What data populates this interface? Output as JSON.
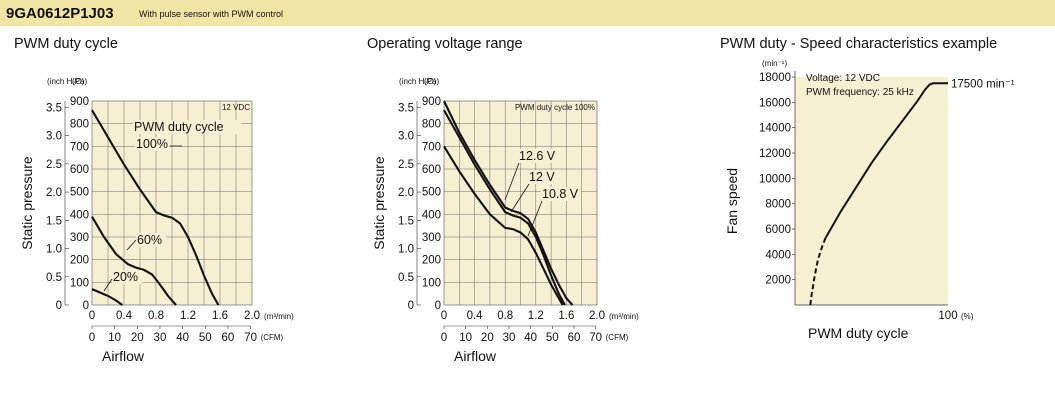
{
  "header": {
    "model": "9GA0612P1J03",
    "subtitle": "With pulse sensor with PWM control",
    "band_color": "#f1e5a6"
  },
  "plot_background": "#f7efd2",
  "chart_data": [
    {
      "type": "line",
      "title": "PWM duty cycle",
      "ylabel": "Static pressure",
      "xlabel": "Airflow",
      "y_unit_left": "(inch H₂O)",
      "y_unit_right": "(Pa)",
      "x_unit_top": "(m³/min)",
      "x_unit_bottom": "(CFM)",
      "corner_note": "12 VDC",
      "annotation": "PWM duty cycle",
      "xlim": [
        0,
        2.0
      ],
      "ylim": [
        0,
        900
      ],
      "x_ticks": [
        "0",
        "0.4",
        "0.8",
        "1.2",
        "1.6",
        "2.0"
      ],
      "cfm_ticks": [
        "0",
        "10",
        "20",
        "30",
        "40",
        "50",
        "60",
        "70"
      ],
      "pa_ticks": [
        "0",
        "100",
        "200",
        "300",
        "400",
        "500",
        "600",
        "700",
        "800",
        "900"
      ],
      "inch_ticks": [
        "0",
        "0.5",
        "1.0",
        "1.5",
        "2.0",
        "2.5",
        "3.0",
        "3.5"
      ],
      "series": [
        {
          "name": "100%",
          "x": [
            0,
            0.2,
            0.4,
            0.6,
            0.8,
            0.9,
            1.0,
            1.1,
            1.2,
            1.3,
            1.4,
            1.5,
            1.58
          ],
          "y": [
            860,
            740,
            620,
            510,
            410,
            395,
            385,
            360,
            300,
            220,
            130,
            50,
            0
          ]
        },
        {
          "name": "60%",
          "x": [
            0,
            0.15,
            0.3,
            0.45,
            0.55,
            0.65,
            0.75,
            0.85,
            0.95,
            1.05
          ],
          "y": [
            390,
            300,
            225,
            180,
            165,
            155,
            135,
            90,
            40,
            0
          ]
        },
        {
          "name": "20%",
          "x": [
            0,
            0.1,
            0.2,
            0.3,
            0.38
          ],
          "y": [
            70,
            55,
            40,
            20,
            0
          ]
        }
      ]
    },
    {
      "type": "line",
      "title": "Operating voltage range",
      "ylabel": "Static pressure",
      "xlabel": "Airflow",
      "y_unit_left": "(inch H₂O)",
      "y_unit_right": "(Pa)",
      "x_unit_top": "(m³/min)",
      "x_unit_bottom": "(CFM)",
      "corner_note": "PWM duty cycle 100%",
      "xlim": [
        0,
        2.0
      ],
      "ylim": [
        0,
        900
      ],
      "x_ticks": [
        "0",
        "0.4",
        "0.8",
        "1.2",
        "1.6",
        "2.0"
      ],
      "cfm_ticks": [
        "0",
        "10",
        "20",
        "30",
        "40",
        "50",
        "60",
        "70"
      ],
      "pa_ticks": [
        "0",
        "100",
        "200",
        "300",
        "400",
        "500",
        "600",
        "700",
        "800",
        "900"
      ],
      "inch_ticks": [
        "0",
        "0.5",
        "1.0",
        "1.5",
        "2.0",
        "2.5",
        "3.0",
        "3.5"
      ],
      "series": [
        {
          "name": "12.6 V",
          "x": [
            0,
            0.2,
            0.4,
            0.6,
            0.8,
            0.9,
            1.0,
            1.1,
            1.2,
            1.3,
            1.4,
            1.5,
            1.6,
            1.68
          ],
          "y": [
            900,
            760,
            640,
            530,
            430,
            415,
            405,
            380,
            320,
            240,
            160,
            90,
            30,
            0
          ]
        },
        {
          "name": "12 V",
          "x": [
            0,
            0.2,
            0.4,
            0.6,
            0.8,
            0.9,
            1.0,
            1.1,
            1.2,
            1.3,
            1.4,
            1.5,
            1.58
          ],
          "y": [
            860,
            740,
            620,
            510,
            410,
            395,
            385,
            360,
            300,
            220,
            130,
            50,
            0
          ]
        },
        {
          "name": "10.8 V",
          "x": [
            0,
            0.2,
            0.4,
            0.6,
            0.8,
            0.9,
            1.0,
            1.1,
            1.2,
            1.3,
            1.4,
            1.5,
            1.55
          ],
          "y": [
            700,
            590,
            490,
            400,
            340,
            335,
            320,
            290,
            230,
            160,
            90,
            30,
            0
          ]
        }
      ]
    },
    {
      "type": "line",
      "title": "PWM duty - Speed characteristics example",
      "ylabel": "Fan speed",
      "xlabel": "PWM duty cycle",
      "y_unit": "(min⁻¹)",
      "x_unit": "(%)",
      "note_lines": [
        "Voltage: 12 VDC",
        "PWM frequency: 25 kHz"
      ],
      "end_label": "17500 min⁻¹",
      "xlim": [
        0,
        100
      ],
      "ylim": [
        0,
        18000
      ],
      "x_ticks": [
        "0",
        "100"
      ],
      "y_ticks": [
        "2000",
        "4000",
        "6000",
        "8000",
        "10000",
        "12000",
        "14000",
        "16000",
        "18000"
      ],
      "series": [
        {
          "name": "dashed",
          "x": [
            10,
            11,
            13,
            15,
            18,
            20
          ],
          "y": [
            0,
            900,
            2400,
            3600,
            4700,
            5300
          ]
        },
        {
          "name": "solid",
          "x": [
            20,
            30,
            40,
            50,
            60,
            70,
            80,
            85,
            88,
            90,
            93,
            100
          ],
          "y": [
            5300,
            7400,
            9300,
            11200,
            12900,
            14500,
            16100,
            17000,
            17400,
            17500,
            17500,
            17500
          ]
        }
      ]
    }
  ]
}
